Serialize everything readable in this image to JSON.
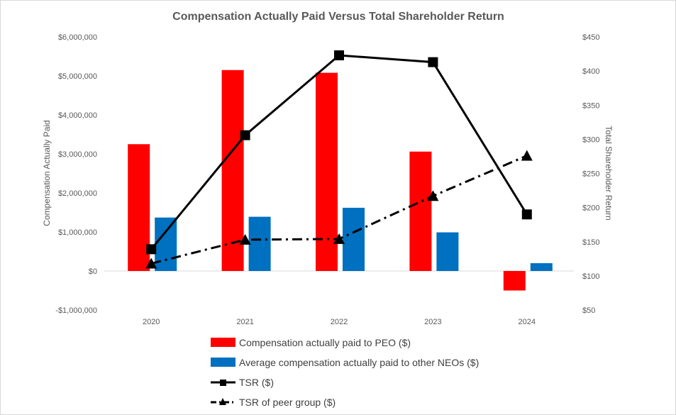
{
  "chart_data": {
    "type": "bar",
    "title": "Compensation Actually Paid Versus Total Shareholder Return",
    "categories": [
      "2020",
      "2021",
      "2022",
      "2023",
      "2024"
    ],
    "y_left": {
      "label": "Compensation Actually Paid",
      "range": [
        -1000000,
        6000000
      ],
      "ticks": [
        -1000000,
        0,
        1000000,
        2000000,
        3000000,
        4000000,
        5000000,
        6000000
      ],
      "tick_labels": [
        "-$1,000,000",
        "$0",
        "$1,000,000",
        "$2,000,000",
        "$3,000,000",
        "$4,000,000",
        "$5,000,000",
        "$6,000,000"
      ]
    },
    "y_right": {
      "label": "Total Shareholder Return",
      "range": [
        50,
        450
      ],
      "ticks": [
        50,
        100,
        150,
        200,
        250,
        300,
        350,
        400,
        450
      ],
      "tick_labels": [
        "$50",
        "$100",
        "$150",
        "$200",
        "$250",
        "$300",
        "$350",
        "$400",
        "$450"
      ]
    },
    "series": [
      {
        "name": "Compensation actually paid to PEO ($)",
        "type": "bar",
        "axis": "left",
        "color": "#ff0000",
        "values": [
          3250000,
          5150000,
          5080000,
          3060000,
          -500000
        ]
      },
      {
        "name": "Average compensation actually paid to other NEOs ($)",
        "type": "bar",
        "axis": "left",
        "color": "#0070c0",
        "values": [
          1370000,
          1390000,
          1620000,
          990000,
          200000
        ]
      },
      {
        "name": "TSR ($)",
        "type": "line",
        "axis": "right",
        "color": "#000000",
        "marker": "square",
        "dash": "solid",
        "values": [
          139,
          306,
          423,
          413,
          190
        ]
      },
      {
        "name": "TSR of peer group ($)",
        "type": "line",
        "axis": "right",
        "color": "#000000",
        "marker": "triangle",
        "dash": "dash-dot",
        "values": [
          118,
          153,
          154,
          217,
          276
        ]
      }
    ],
    "grid": false,
    "legend_position": "bottom"
  }
}
